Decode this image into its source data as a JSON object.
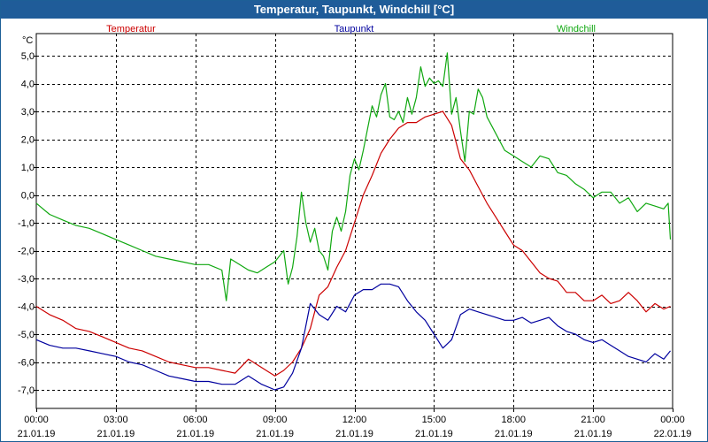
{
  "window": {
    "title": "Temperatur, Taupunkt, Windchill [°C]"
  },
  "colors": {
    "Temperatur": "#cc0000",
    "Taupunkt": "#00009e",
    "Windchill": "#10a810",
    "titlebar": "#1f5c99",
    "grid": "#000000"
  },
  "chart_data": {
    "type": "line",
    "title": "Temperatur, Taupunkt, Windchill [°C]",
    "ylabel": "°C",
    "xlabel": "",
    "ylim": [
      -7.5,
      5.5
    ],
    "xlim": [
      "2019-01-21T00:00",
      "2019-01-22T00:00"
    ],
    "yticks": [
      5,
      4,
      3,
      2,
      1,
      0,
      -1,
      -2,
      -3,
      -4,
      -5,
      -6,
      -7
    ],
    "yticklabels": [
      "5,0",
      "4,0",
      "3,0",
      "2,0",
      "1,0",
      "0,0",
      "-1,0",
      "-2,0",
      "-3,0",
      "-4,0",
      "-5,0",
      "-6,0",
      "-7,0"
    ],
    "xticks": [
      {
        "time": "00:00",
        "date": "21.01.19"
      },
      {
        "time": "03:00",
        "date": "21.01.19"
      },
      {
        "time": "06:00",
        "date": "21.01.19"
      },
      {
        "time": "09:00",
        "date": "21.01.19"
      },
      {
        "time": "12:00",
        "date": "21.01.19"
      },
      {
        "time": "15:00",
        "date": "21.01.19"
      },
      {
        "time": "18:00",
        "date": "21.01.19"
      },
      {
        "time": "21:00",
        "date": "21.01.19"
      },
      {
        "time": "00:00",
        "date": "22.01.19"
      }
    ],
    "grid": true,
    "legend_position": "top",
    "series": [
      {
        "name": "Temperatur",
        "color": "#cc0000",
        "x": [
          "00:00",
          "00:30",
          "01:00",
          "01:30",
          "02:00",
          "02:30",
          "03:00",
          "03:30",
          "04:00",
          "04:30",
          "05:00",
          "05:30",
          "06:00",
          "06:30",
          "07:00",
          "07:30",
          "08:00",
          "08:30",
          "09:00",
          "09:20",
          "09:40",
          "10:00",
          "10:20",
          "10:40",
          "11:00",
          "11:20",
          "11:40",
          "12:00",
          "12:20",
          "12:40",
          "13:00",
          "13:20",
          "13:40",
          "14:00",
          "14:20",
          "14:40",
          "15:00",
          "15:20",
          "15:40",
          "16:00",
          "16:20",
          "16:40",
          "17:00",
          "17:20",
          "17:40",
          "18:00",
          "18:20",
          "18:40",
          "19:00",
          "19:20",
          "19:40",
          "20:00",
          "20:20",
          "20:40",
          "21:00",
          "21:20",
          "21:40",
          "22:00",
          "22:20",
          "22:40",
          "23:00",
          "23:20",
          "23:40",
          "23:55"
        ],
        "y": [
          -4.0,
          -4.3,
          -4.5,
          -4.8,
          -4.9,
          -5.1,
          -5.3,
          -5.5,
          -5.6,
          -5.8,
          -6.0,
          -6.1,
          -6.2,
          -6.2,
          -6.3,
          -6.4,
          -5.9,
          -6.2,
          -6.5,
          -6.3,
          -6.0,
          -5.5,
          -4.8,
          -3.6,
          -3.3,
          -2.6,
          -2.0,
          -1.0,
          0.0,
          0.7,
          1.5,
          2.0,
          2.4,
          2.6,
          2.6,
          2.8,
          2.9,
          3.0,
          2.5,
          1.3,
          0.9,
          0.3,
          -0.3,
          -0.8,
          -1.3,
          -1.8,
          -2.0,
          -2.4,
          -2.8,
          -3.0,
          -3.1,
          -3.5,
          -3.5,
          -3.8,
          -3.8,
          -3.6,
          -3.9,
          -3.8,
          -3.5,
          -3.8,
          -4.2,
          -3.9,
          -4.1,
          -4.0
        ]
      },
      {
        "name": "Taupunkt",
        "color": "#00009e",
        "x": [
          "00:00",
          "00:30",
          "01:00",
          "01:30",
          "02:00",
          "02:30",
          "03:00",
          "03:30",
          "04:00",
          "04:30",
          "05:00",
          "05:30",
          "06:00",
          "06:30",
          "07:00",
          "07:30",
          "08:00",
          "08:30",
          "09:00",
          "09:20",
          "09:40",
          "10:00",
          "10:20",
          "10:40",
          "11:00",
          "11:20",
          "11:40",
          "12:00",
          "12:20",
          "12:40",
          "13:00",
          "13:20",
          "13:40",
          "14:00",
          "14:20",
          "14:40",
          "15:00",
          "15:20",
          "15:40",
          "16:00",
          "16:20",
          "16:40",
          "17:00",
          "17:20",
          "17:40",
          "18:00",
          "18:20",
          "18:40",
          "19:00",
          "19:20",
          "19:40",
          "20:00",
          "20:20",
          "20:40",
          "21:00",
          "21:20",
          "21:40",
          "22:00",
          "22:20",
          "22:40",
          "23:00",
          "23:20",
          "23:40",
          "23:55"
        ],
        "y": [
          -5.2,
          -5.4,
          -5.5,
          -5.5,
          -5.6,
          -5.7,
          -5.8,
          -6.0,
          -6.1,
          -6.3,
          -6.5,
          -6.6,
          -6.7,
          -6.7,
          -6.8,
          -6.8,
          -6.5,
          -6.8,
          -7.0,
          -6.9,
          -6.4,
          -5.5,
          -3.9,
          -4.3,
          -4.5,
          -4.0,
          -4.2,
          -3.6,
          -3.4,
          -3.4,
          -3.2,
          -3.2,
          -3.3,
          -3.8,
          -4.2,
          -4.5,
          -5.0,
          -5.5,
          -5.2,
          -4.3,
          -4.1,
          -4.2,
          -4.3,
          -4.4,
          -4.5,
          -4.5,
          -4.4,
          -4.6,
          -4.5,
          -4.4,
          -4.7,
          -4.9,
          -5.0,
          -5.2,
          -5.3,
          -5.2,
          -5.4,
          -5.6,
          -5.8,
          -5.9,
          -6.0,
          -5.7,
          -5.9,
          -5.6
        ]
      },
      {
        "name": "Windchill",
        "color": "#10a810",
        "x": [
          "00:00",
          "00:30",
          "01:00",
          "01:30",
          "02:00",
          "02:30",
          "03:00",
          "03:30",
          "04:00",
          "04:30",
          "05:00",
          "05:30",
          "06:00",
          "06:30",
          "07:00",
          "07:10",
          "07:20",
          "07:40",
          "08:00",
          "08:20",
          "08:40",
          "09:00",
          "09:20",
          "09:30",
          "09:40",
          "09:50",
          "10:00",
          "10:10",
          "10:20",
          "10:30",
          "10:40",
          "10:50",
          "11:00",
          "11:10",
          "11:20",
          "11:30",
          "11:40",
          "11:50",
          "12:00",
          "12:10",
          "12:20",
          "12:30",
          "12:40",
          "12:50",
          "13:00",
          "13:10",
          "13:20",
          "13:30",
          "13:40",
          "13:50",
          "14:00",
          "14:10",
          "14:20",
          "14:30",
          "14:40",
          "14:50",
          "15:00",
          "15:10",
          "15:20",
          "15:30",
          "15:40",
          "15:50",
          "16:00",
          "16:10",
          "16:20",
          "16:30",
          "16:40",
          "16:50",
          "17:00",
          "17:20",
          "17:40",
          "18:00",
          "18:20",
          "18:40",
          "19:00",
          "19:20",
          "19:40",
          "20:00",
          "20:20",
          "20:40",
          "21:00",
          "21:20",
          "21:40",
          "22:00",
          "22:20",
          "22:40",
          "23:00",
          "23:20",
          "23:40",
          "23:50",
          "23:55"
        ],
        "y": [
          -0.3,
          -0.7,
          -0.9,
          -1.1,
          -1.2,
          -1.4,
          -1.6,
          -1.8,
          -2.0,
          -2.2,
          -2.3,
          -2.4,
          -2.5,
          -2.5,
          -2.7,
          -3.8,
          -2.3,
          -2.5,
          -2.7,
          -2.8,
          -2.6,
          -2.4,
          -2.0,
          -3.2,
          -2.6,
          -1.5,
          0.1,
          -1.0,
          -1.7,
          -1.2,
          -2.0,
          -2.2,
          -2.7,
          -1.3,
          -0.8,
          -1.3,
          -0.6,
          0.7,
          1.3,
          0.9,
          1.6,
          2.4,
          3.2,
          2.8,
          3.6,
          4.0,
          2.8,
          2.7,
          3.0,
          2.6,
          3.5,
          2.9,
          3.5,
          4.6,
          3.9,
          4.2,
          4.0,
          4.1,
          3.9,
          5.1,
          2.9,
          3.5,
          2.3,
          1.2,
          3.0,
          2.9,
          3.8,
          3.5,
          2.8,
          2.2,
          1.6,
          1.4,
          1.2,
          1.0,
          1.4,
          1.3,
          0.8,
          0.7,
          0.4,
          0.2,
          -0.1,
          0.1,
          0.1,
          -0.3,
          -0.1,
          -0.6,
          -0.3,
          -0.4,
          -0.5,
          -0.3,
          -1.6
        ]
      }
    ]
  }
}
